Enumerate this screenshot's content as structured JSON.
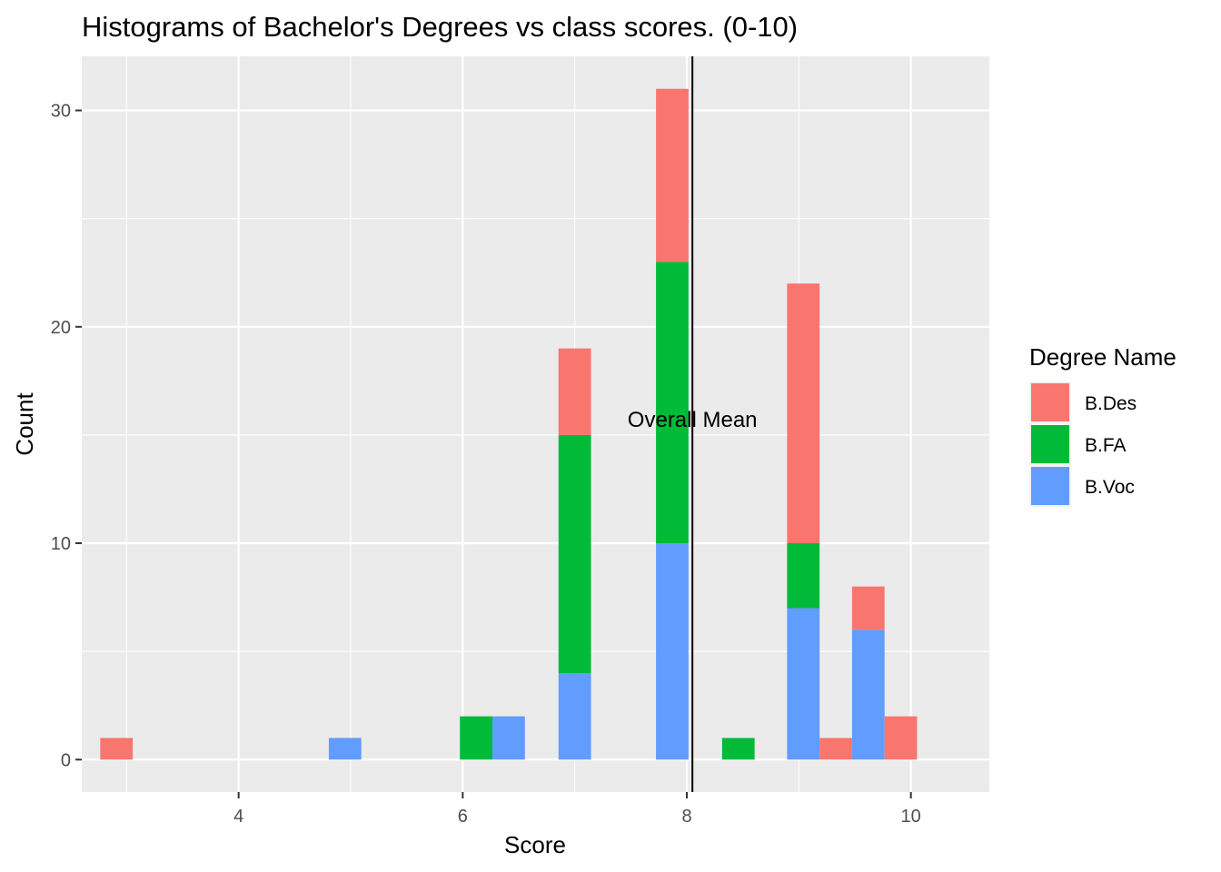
{
  "chart_data": {
    "type": "bar",
    "stacked": true,
    "title": "Histograms of Bachelor's Degrees vs class scores. (0-10)",
    "xlabel": "Score",
    "ylabel": "Count",
    "xlim": [
      2.6,
      10.7
    ],
    "ylim": [
      -1.5,
      32.5
    ],
    "x_ticks": [
      4,
      6,
      8,
      10
    ],
    "y_ticks": [
      0,
      10,
      20,
      30
    ],
    "bin_width": 0.29,
    "grid": true,
    "legend": {
      "title": "Degree Name",
      "position": "right"
    },
    "series": [
      {
        "name": "B.Des",
        "color": "#F8766D",
        "points": [
          {
            "x": 2.91,
            "value": 1
          },
          {
            "x": 7.0,
            "value": 4
          },
          {
            "x": 7.87,
            "value": 8
          },
          {
            "x": 9.04,
            "value": 12
          },
          {
            "x": 9.33,
            "value": 1
          },
          {
            "x": 9.62,
            "value": 2
          },
          {
            "x": 9.91,
            "value": 2
          }
        ]
      },
      {
        "name": "B.FA",
        "color": "#00BA38",
        "points": [
          {
            "x": 6.12,
            "value": 2
          },
          {
            "x": 7.0,
            "value": 11
          },
          {
            "x": 7.87,
            "value": 13
          },
          {
            "x": 8.46,
            "value": 1
          },
          {
            "x": 9.04,
            "value": 3
          }
        ]
      },
      {
        "name": "B.Voc",
        "color": "#619CFF",
        "points": [
          {
            "x": 4.95,
            "value": 1
          },
          {
            "x": 6.41,
            "value": 2
          },
          {
            "x": 7.0,
            "value": 4
          },
          {
            "x": 7.87,
            "value": 10
          },
          {
            "x": 9.04,
            "value": 7
          },
          {
            "x": 9.62,
            "value": 6
          }
        ]
      }
    ],
    "mean_line": {
      "x": 8.05,
      "label": "Overall Mean",
      "label_y": 15.7
    }
  }
}
